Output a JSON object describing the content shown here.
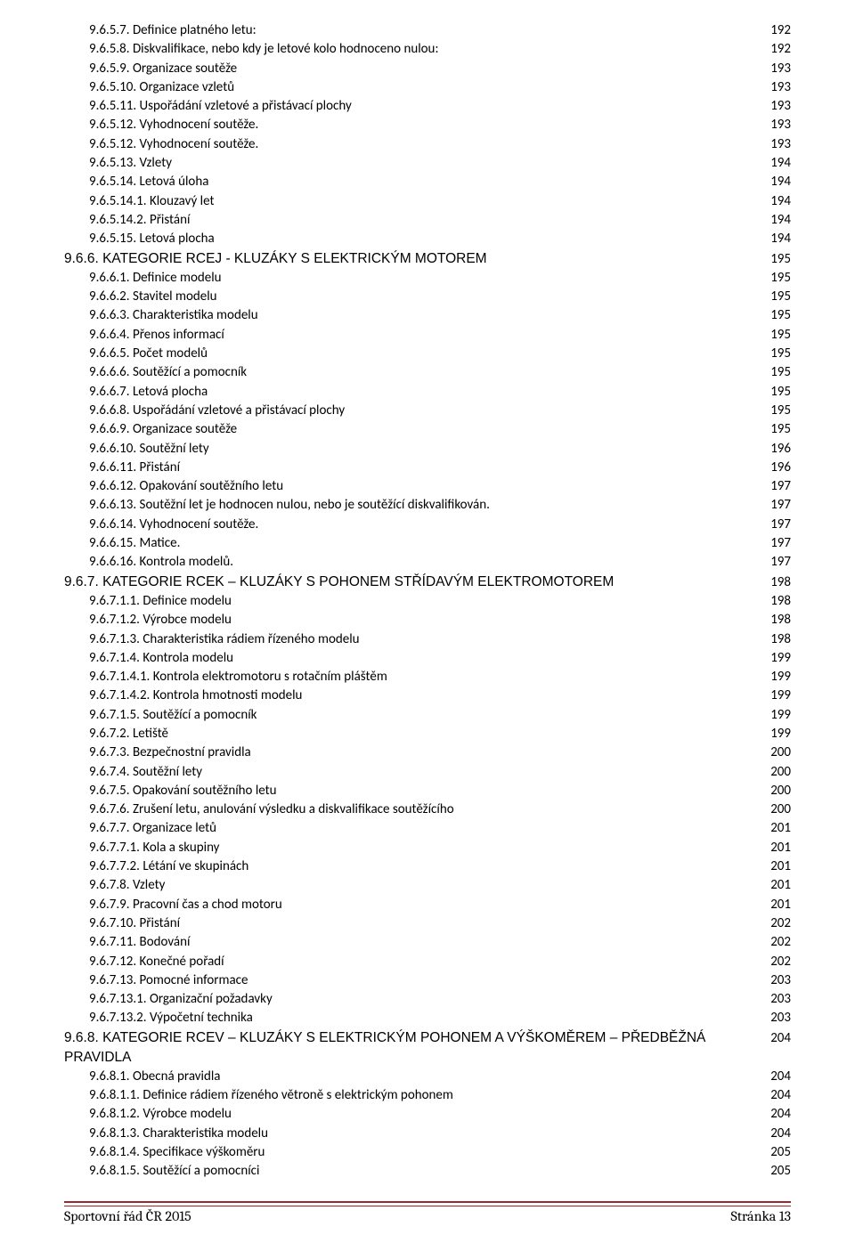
{
  "entries": [
    {
      "level": "l1",
      "label": "9.6.5.7. Definice platného letu:",
      "page": "192"
    },
    {
      "level": "l1",
      "label": "9.6.5.8. Diskvalifikace, nebo kdy je letové kolo hodnoceno nulou:",
      "page": "192"
    },
    {
      "level": "l1",
      "label": "9.6.5.9. Organizace soutěže",
      "page": "193"
    },
    {
      "level": "l1",
      "label": "9.6.5.10. Organizace vzletů",
      "page": "193"
    },
    {
      "level": "l1",
      "label": "9.6.5.11. Uspořádání vzletové a přistávací plochy",
      "page": "193"
    },
    {
      "level": "l1",
      "label": "9.6.5.12. Vyhodnocení soutěže.",
      "page": "193"
    },
    {
      "level": "l1",
      "label": "9.6.5.12. Vyhodnocení soutěže.",
      "page": "193"
    },
    {
      "level": "l1",
      "label": "9.6.5.13. Vzlety",
      "page": "194"
    },
    {
      "level": "l1",
      "label": "9.6.5.14. Letová úloha",
      "page": "194"
    },
    {
      "level": "l1",
      "label": "9.6.5.14.1. Klouzavý let",
      "page": "194"
    },
    {
      "level": "l1",
      "label": "9.6.5.14.2. Přistání",
      "page": "194"
    },
    {
      "level": "l1",
      "label": "9.6.5.15. Letová plocha",
      "page": "194"
    },
    {
      "level": "head",
      "label": "9.6.6. KATEGORIE RCEJ - KLUZÁKY S ELEKTRICKÝM MOTOREM",
      "page": "195"
    },
    {
      "level": "l1",
      "label": "9.6.6.1. Definice modelu",
      "page": "195"
    },
    {
      "level": "l1",
      "label": "9.6.6.2. Stavitel modelu",
      "page": "195"
    },
    {
      "level": "l1",
      "label": "9.6.6.3. Charakteristika modelu",
      "page": "195"
    },
    {
      "level": "l1",
      "label": "9.6.6.4. Přenos informací",
      "page": "195"
    },
    {
      "level": "l1",
      "label": "9.6.6.5. Počet modelů",
      "page": "195"
    },
    {
      "level": "l1",
      "label": "9.6.6.6. Soutěžící a pomocník",
      "page": "195"
    },
    {
      "level": "l1",
      "label": "9.6.6.7. Letová plocha",
      "page": "195"
    },
    {
      "level": "l1",
      "label": "9.6.6.8. Uspořádání vzletové a přistávací plochy",
      "page": "195"
    },
    {
      "level": "l1",
      "label": "9.6.6.9. Organizace soutěže",
      "page": "195"
    },
    {
      "level": "l1",
      "label": "9.6.6.10. Soutěžní lety",
      "page": "196"
    },
    {
      "level": "l1",
      "label": "9.6.6.11. Přistání",
      "page": "196"
    },
    {
      "level": "l1",
      "label": "9.6.6.12. Opakování soutěžního letu",
      "page": "197"
    },
    {
      "level": "l1",
      "label": "9.6.6.13. Soutěžní let je hodnocen nulou, nebo je soutěžící diskvalifikován.",
      "page": "197"
    },
    {
      "level": "l1",
      "label": "9.6.6.14. Vyhodnocení soutěže.",
      "page": "197"
    },
    {
      "level": "l1",
      "label": "9.6.6.15. Matice.",
      "page": "197"
    },
    {
      "level": "l1",
      "label": "9.6.6.16. Kontrola modelů.",
      "page": "197"
    },
    {
      "level": "head",
      "label": "9.6.7. KATEGORIE RCEK – KLUZÁKY S POHONEM STŘÍDAVÝM ELEKTROMOTOREM",
      "page": "198"
    },
    {
      "level": "l1",
      "label": "9.6.7.1.1. Definice modelu",
      "page": "198"
    },
    {
      "level": "l1",
      "label": "9.6.7.1.2. Výrobce modelu",
      "page": "198"
    },
    {
      "level": "l1",
      "label": "9.6.7.1.3. Charakteristika rádiem řízeného modelu",
      "page": "198"
    },
    {
      "level": "l1",
      "label": "9.6.7.1.4. Kontrola modelu",
      "page": "199"
    },
    {
      "level": "l1",
      "label": "9.6.7.1.4.1. Kontrola elektromotoru s rotačním pláštěm",
      "page": "199"
    },
    {
      "level": "l1",
      "label": "9.6.7.1.4.2. Kontrola hmotnosti modelu",
      "page": "199"
    },
    {
      "level": "l1",
      "label": "9.6.7.1.5. Soutěžící a pomocník",
      "page": "199"
    },
    {
      "level": "l1",
      "label": "9.6.7.2. Letiště",
      "page": "199"
    },
    {
      "level": "l1",
      "label": "9.6.7.3. Bezpečnostní pravidla",
      "page": "200"
    },
    {
      "level": "l1",
      "label": "9.6.7.4. Soutěžní lety",
      "page": "200"
    },
    {
      "level": "l1",
      "label": "9.6.7.5. Opakování soutěžního letu",
      "page": "200"
    },
    {
      "level": "l1",
      "label": "9.6.7.6. Zrušení letu, anulování výsledku a diskvalifikace soutěžícího",
      "page": "200"
    },
    {
      "level": "l1",
      "label": "9.6.7.7. Organizace letů",
      "page": "201"
    },
    {
      "level": "l1",
      "label": "9.6.7.7.1. Kola a skupiny",
      "page": "201"
    },
    {
      "level": "l1",
      "label": "9.6.7.7.2. Létání ve skupinách",
      "page": "201"
    },
    {
      "level": "l1",
      "label": "9.6.7.8. Vzlety",
      "page": "201"
    },
    {
      "level": "l1",
      "label": "9.6.7.9. Pracovní čas a chod motoru",
      "page": "201"
    },
    {
      "level": "l1",
      "label": "9.6.7.10. Přistání",
      "page": "202"
    },
    {
      "level": "l1",
      "label": "9.6.7.11. Bodování",
      "page": "202"
    },
    {
      "level": "l1",
      "label": "9.6.7.12. Konečné pořadí",
      "page": "202"
    },
    {
      "level": "l1",
      "label": "9.6.7.13. Pomocné informace",
      "page": "203"
    },
    {
      "level": "l1",
      "label": "9.6.7.13.1. Organizační požadavky",
      "page": "203"
    },
    {
      "level": "l1",
      "label": "9.6.7.13.2. Výpočetní technika",
      "page": "203"
    },
    {
      "level": "head",
      "label": "9.6.8. KATEGORIE RCEV – KLUZÁKY S ELEKTRICKÝM POHONEM A VÝŠKOMĚREM – PŘEDBĚŽNÁ PRAVIDLA",
      "page": "204"
    },
    {
      "level": "l1",
      "label": "9.6.8.1. Obecná pravidla",
      "page": "204"
    },
    {
      "level": "l1",
      "label": "9.6.8.1.1. Definice rádiem řízeného větroně s elektrickým pohonem",
      "page": "204"
    },
    {
      "level": "l1",
      "label": "9.6.8.1.2. Výrobce modelu",
      "page": "204"
    },
    {
      "level": "l1",
      "label": "9.6.8.1.3. Charakteristika modelu",
      "page": "204"
    },
    {
      "level": "l1",
      "label": "9.6.8.1.4. Specifikace výškoměru",
      "page": "205"
    },
    {
      "level": "l1",
      "label": "9.6.8.1.5. Soutěžící a pomocníci",
      "page": "205"
    }
  ],
  "footer": {
    "left": "Sportovní řád ČR 2015",
    "right": "Stránka 13"
  },
  "colors": {
    "rule": "#a02828",
    "text": "#000000",
    "bg": "#ffffff"
  }
}
